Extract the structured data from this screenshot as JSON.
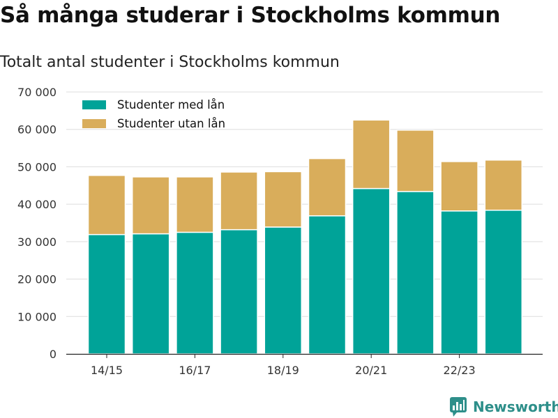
{
  "title": "Så många studerar i Stockholms kommun",
  "subtitle": "Totalt antal studenter i Stockholms kommun",
  "brand": {
    "name": "Newsworthy",
    "icon": "newsworthy-logo-icon"
  },
  "colors": {
    "series_with_loan": "#00a398",
    "series_without_loan": "#d9ad5b",
    "grid": "#dddddd",
    "axis": "#222222"
  },
  "chart_data": {
    "type": "bar",
    "stacked": true,
    "categories": [
      "14/15",
      "15/16",
      "16/17",
      "17/18",
      "18/19",
      "19/20",
      "20/21",
      "21/22",
      "22/23",
      "23/24"
    ],
    "tick_labels_shown": [
      "14/15",
      "16/17",
      "18/19",
      "20/21",
      "22/23"
    ],
    "series": [
      {
        "name": "Studenter med lån",
        "color": "#00a398",
        "values": [
          31900,
          32100,
          32500,
          33200,
          33900,
          36900,
          44200,
          43400,
          38200,
          38400
        ]
      },
      {
        "name": "Studenter utan lån",
        "color": "#d9ad5b",
        "values": [
          15800,
          15200,
          14800,
          15400,
          14800,
          15300,
          18300,
          16400,
          13200,
          13400
        ]
      }
    ],
    "ylim": [
      0,
      70000
    ],
    "yticks": [
      0,
      10000,
      20000,
      30000,
      40000,
      50000,
      60000,
      70000
    ],
    "ytick_labels": [
      "0",
      "10 000",
      "20 000",
      "30 000",
      "40 000",
      "50 000",
      "60 000",
      "70 000"
    ],
    "grid": true,
    "legend_position": "top-left",
    "xlabel": "",
    "ylabel": ""
  }
}
